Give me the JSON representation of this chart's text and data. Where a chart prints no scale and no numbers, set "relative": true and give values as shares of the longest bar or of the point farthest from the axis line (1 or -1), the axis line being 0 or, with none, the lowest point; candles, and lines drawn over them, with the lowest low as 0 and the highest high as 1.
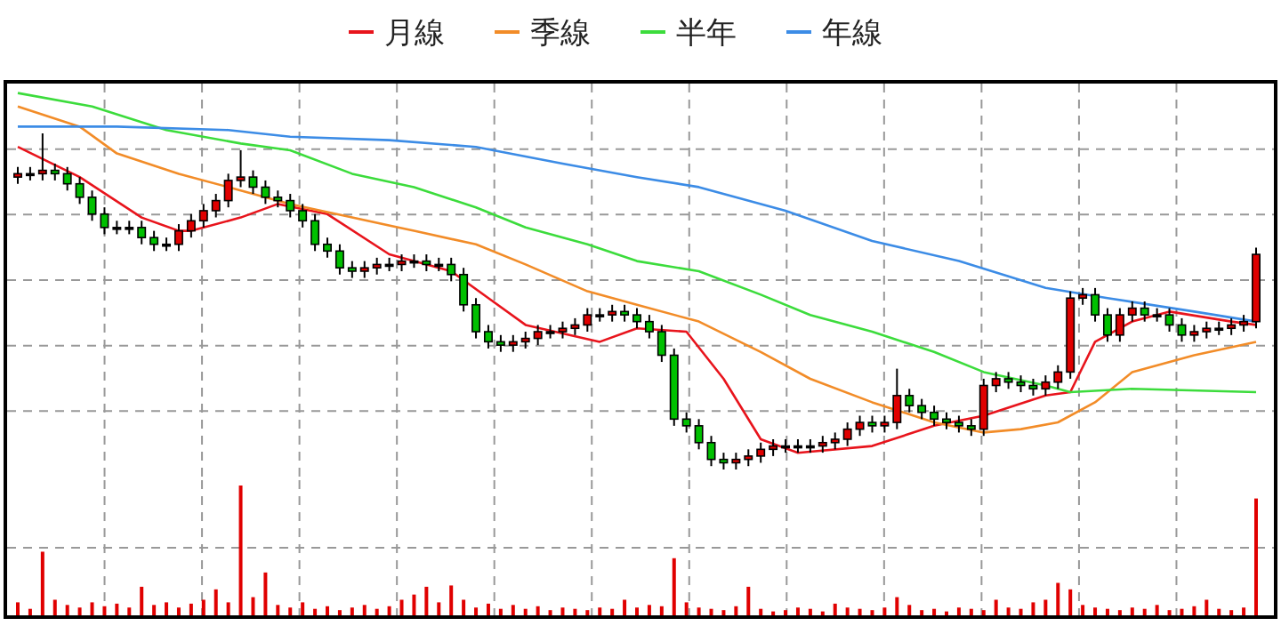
{
  "chart_data": [
    {
      "type": "candlestick",
      "relative": true,
      "grid": true,
      "legend": "top",
      "categories": [
        null,
        null,
        null,
        null,
        null,
        null,
        null,
        null,
        null,
        null,
        null,
        null,
        null,
        null,
        null,
        null,
        null,
        null,
        null,
        null,
        null,
        null,
        null,
        null,
        null,
        null,
        null,
        null,
        null,
        null,
        null,
        null,
        null,
        null,
        null,
        null,
        null,
        null,
        null,
        null,
        null,
        null,
        null,
        null,
        null,
        null,
        null,
        null,
        null,
        null,
        null,
        null,
        null,
        null,
        null,
        null,
        null,
        null,
        null,
        null,
        null,
        null,
        null,
        null,
        null,
        null,
        null,
        null,
        null,
        null,
        null,
        null,
        null,
        null,
        null,
        null,
        null,
        null,
        null,
        null,
        null,
        null,
        null,
        null,
        null,
        null,
        null,
        null,
        null,
        null,
        null,
        null,
        null,
        null,
        null,
        null,
        null,
        null,
        null,
        null,
        null
      ],
      "ohlc": [
        [
          0.87,
          0.9,
          0.85,
          0.88
        ],
        [
          0.88,
          0.9,
          0.86,
          0.88
        ],
        [
          0.88,
          1,
          0.86,
          0.89
        ],
        [
          0.89,
          0.91,
          0.86,
          0.88
        ],
        [
          0.88,
          0.9,
          0.83,
          0.85
        ],
        [
          0.85,
          0.87,
          0.79,
          0.81
        ],
        [
          0.81,
          0.83,
          0.74,
          0.76
        ],
        [
          0.76,
          0.78,
          0.7,
          0.72
        ],
        [
          0.72,
          0.74,
          0.7,
          0.72
        ],
        [
          0.72,
          0.74,
          0.7,
          0.72
        ],
        [
          0.72,
          0.74,
          0.67,
          0.69
        ],
        [
          0.69,
          0.71,
          0.65,
          0.67
        ],
        [
          0.67,
          0.69,
          0.65,
          0.67
        ],
        [
          0.67,
          0.73,
          0.65,
          0.71
        ],
        [
          0.71,
          0.76,
          0.69,
          0.74
        ],
        [
          0.74,
          0.79,
          0.72,
          0.77
        ],
        [
          0.77,
          0.82,
          0.75,
          0.8
        ],
        [
          0.8,
          0.88,
          0.78,
          0.86
        ],
        [
          0.86,
          0.95,
          0.84,
          0.87
        ],
        [
          0.87,
          0.89,
          0.82,
          0.84
        ],
        [
          0.84,
          0.86,
          0.79,
          0.81
        ],
        [
          0.81,
          0.83,
          0.78,
          0.8
        ],
        [
          0.8,
          0.82,
          0.75,
          0.77
        ],
        [
          0.77,
          0.79,
          0.72,
          0.74
        ],
        [
          0.74,
          0.76,
          0.65,
          0.67
        ],
        [
          0.67,
          0.69,
          0.63,
          0.65
        ],
        [
          0.65,
          0.67,
          0.58,
          0.6
        ],
        [
          0.6,
          0.62,
          0.57,
          0.59
        ],
        [
          0.59,
          0.62,
          0.57,
          0.6
        ],
        [
          0.6,
          0.63,
          0.58,
          0.61
        ],
        [
          0.61,
          0.63,
          0.59,
          0.61
        ],
        [
          0.61,
          0.64,
          0.59,
          0.62
        ],
        [
          0.62,
          0.64,
          0.6,
          0.62
        ],
        [
          0.62,
          0.64,
          0.59,
          0.61
        ],
        [
          0.61,
          0.63,
          0.59,
          0.61
        ],
        [
          0.61,
          0.63,
          0.56,
          0.58
        ],
        [
          0.58,
          0.6,
          0.47,
          0.49
        ],
        [
          0.49,
          0.51,
          0.39,
          0.41
        ],
        [
          0.41,
          0.43,
          0.36,
          0.38
        ],
        [
          0.38,
          0.4,
          0.35,
          0.37
        ],
        [
          0.37,
          0.4,
          0.35,
          0.38
        ],
        [
          0.38,
          0.41,
          0.36,
          0.39
        ],
        [
          0.39,
          0.43,
          0.37,
          0.41
        ],
        [
          0.41,
          0.43,
          0.39,
          0.41
        ],
        [
          0.41,
          0.44,
          0.39,
          0.42
        ],
        [
          0.42,
          0.45,
          0.4,
          0.43
        ],
        [
          0.43,
          0.48,
          0.41,
          0.46
        ],
        [
          0.46,
          0.48,
          0.44,
          0.46
        ],
        [
          0.46,
          0.49,
          0.44,
          0.47
        ],
        [
          0.47,
          0.49,
          0.44,
          0.46
        ],
        [
          0.46,
          0.48,
          0.42,
          0.44
        ],
        [
          0.44,
          0.46,
          0.39,
          0.41
        ],
        [
          0.41,
          0.43,
          0.32,
          0.34
        ],
        [
          0.34,
          0.36,
          0.13,
          0.15
        ],
        [
          0.15,
          0.17,
          0.11,
          0.13
        ],
        [
          0.13,
          0.15,
          0.06,
          0.08
        ],
        [
          0.08,
          0.1,
          0.01,
          0.03
        ],
        [
          0.03,
          0.05,
          0,
          0.02
        ],
        [
          0.02,
          0.05,
          0,
          0.03
        ],
        [
          0.03,
          0.06,
          0.01,
          0.04
        ],
        [
          0.04,
          0.08,
          0.02,
          0.06
        ],
        [
          0.06,
          0.09,
          0.04,
          0.07
        ],
        [
          0.07,
          0.09,
          0.05,
          0.07
        ],
        [
          0.07,
          0.09,
          0.05,
          0.07
        ],
        [
          0.07,
          0.09,
          0.05,
          0.07
        ],
        [
          0.07,
          0.1,
          0.05,
          0.08
        ],
        [
          0.08,
          0.11,
          0.06,
          0.09
        ],
        [
          0.09,
          0.14,
          0.07,
          0.12
        ],
        [
          0.12,
          0.16,
          0.1,
          0.14
        ],
        [
          0.14,
          0.16,
          0.11,
          0.13
        ],
        [
          0.13,
          0.16,
          0.11,
          0.14
        ],
        [
          0.14,
          0.3,
          0.12,
          0.22
        ],
        [
          0.22,
          0.24,
          0.17,
          0.19
        ],
        [
          0.19,
          0.21,
          0.15,
          0.17
        ],
        [
          0.17,
          0.19,
          0.13,
          0.15
        ],
        [
          0.15,
          0.17,
          0.12,
          0.14
        ],
        [
          0.14,
          0.16,
          0.11,
          0.13
        ],
        [
          0.13,
          0.15,
          0.1,
          0.12
        ],
        [
          0.12,
          0.27,
          0.1,
          0.25
        ],
        [
          0.25,
          0.29,
          0.23,
          0.27
        ],
        [
          0.27,
          0.29,
          0.24,
          0.26
        ],
        [
          0.26,
          0.28,
          0.23,
          0.25
        ],
        [
          0.25,
          0.27,
          0.22,
          0.24
        ],
        [
          0.24,
          0.28,
          0.22,
          0.26
        ],
        [
          0.26,
          0.31,
          0.24,
          0.29
        ],
        [
          0.29,
          0.53,
          0.27,
          0.51
        ],
        [
          0.51,
          0.54,
          0.49,
          0.52
        ],
        [
          0.52,
          0.54,
          0.44,
          0.46
        ],
        [
          0.46,
          0.48,
          0.38,
          0.4
        ],
        [
          0.4,
          0.48,
          0.38,
          0.46
        ],
        [
          0.46,
          0.5,
          0.44,
          0.48
        ],
        [
          0.48,
          0.5,
          0.44,
          0.46
        ],
        [
          0.46,
          0.48,
          0.44,
          0.46
        ],
        [
          0.46,
          0.48,
          0.41,
          0.43
        ],
        [
          0.43,
          0.45,
          0.38,
          0.4
        ],
        [
          0.4,
          0.43,
          0.38,
          0.41
        ],
        [
          0.41,
          0.44,
          0.39,
          0.42
        ],
        [
          0.42,
          0.44,
          0.4,
          0.42
        ],
        [
          0.42,
          0.45,
          0.4,
          0.43
        ],
        [
          0.43,
          0.46,
          0.41,
          0.44
        ],
        [
          0.44,
          0.66,
          0.42,
          0.64
        ]
      ],
      "series": [
        {
          "name": "月線",
          "type": "line",
          "color": "#e8141c",
          "values": [
            0.96,
            null,
            null,
            null,
            null,
            0.87,
            null,
            null,
            null,
            null,
            0.75,
            null,
            null,
            0.71,
            0.71,
            null,
            null,
            null,
            0.75,
            null,
            null,
            0.79,
            null,
            null,
            null,
            0.76,
            null,
            null,
            null,
            null,
            0.64,
            null,
            null,
            null,
            null,
            0.59,
            null,
            null,
            0.51,
            null,
            null,
            0.43,
            null,
            null,
            null,
            null,
            null,
            0.38,
            null,
            null,
            0.42,
            null,
            null,
            null,
            0.41,
            null,
            null,
            0.27,
            null,
            null,
            0.09,
            null,
            null,
            0.05,
            null,
            null,
            null,
            null,
            null,
            0.07,
            null,
            null,
            null,
            null,
            0.13,
            null,
            null,
            null,
            0.16,
            null,
            null,
            null,
            null,
            0.22,
            null,
            0.23,
            null,
            0.38,
            null,
            null,
            0.44,
            null,
            null,
            0.47,
            null,
            null,
            null,
            null,
            0.44,
            null,
            0.43
          ]
        },
        {
          "name": "季線",
          "type": "line",
          "color": "#f28c28",
          "values": [
            1.08,
            null,
            null,
            null,
            null,
            1.02,
            null,
            null,
            0.94,
            null,
            null,
            null,
            null,
            0.88,
            null,
            null,
            null,
            null,
            0.83,
            null,
            null,
            null,
            0.79,
            null,
            null,
            null,
            null,
            0.75,
            null,
            null,
            null,
            null,
            0.71,
            null,
            null,
            null,
            null,
            0.67,
            null,
            null,
            null,
            0.61,
            null,
            null,
            null,
            null,
            0.53,
            null,
            null,
            null,
            0.49,
            null,
            null,
            null,
            null,
            0.44,
            null,
            null,
            null,
            null,
            0.35,
            null,
            null,
            null,
            0.27,
            null,
            null,
            null,
            null,
            0.2,
            null,
            null,
            null,
            null,
            0.14,
            null,
            null,
            null,
            0.11,
            null,
            null,
            0.12,
            null,
            null,
            0.14,
            null,
            null,
            0.2,
            null,
            null,
            0.29,
            null,
            null,
            null,
            null,
            0.34,
            null,
            null,
            null,
            null,
            0.38
          ]
        },
        {
          "name": "半年",
          "type": "line",
          "color": "#3cdc3c",
          "values": [
            1.12,
            null,
            null,
            null,
            null,
            null,
            1.08,
            null,
            null,
            null,
            null,
            null,
            1.01,
            null,
            null,
            null,
            null,
            null,
            0.97,
            null,
            null,
            null,
            0.95,
            null,
            null,
            null,
            null,
            0.88,
            null,
            null,
            null,
            null,
            0.84,
            null,
            null,
            null,
            null,
            0.78,
            null,
            null,
            null,
            0.72,
            null,
            null,
            null,
            null,
            0.67,
            null,
            null,
            null,
            0.62,
            null,
            null,
            null,
            null,
            0.59,
            null,
            null,
            null,
            null,
            0.52,
            null,
            null,
            null,
            0.46,
            null,
            null,
            null,
            null,
            0.41,
            null,
            null,
            null,
            null,
            0.35,
            null,
            null,
            null,
            0.29,
            null,
            null,
            null,
            null,
            0.25,
            null,
            0.23,
            null,
            null,
            null,
            null,
            0.24,
            null,
            null,
            null,
            null,
            null,
            null,
            null,
            null,
            null,
            0.23
          ]
        },
        {
          "name": "年線",
          "type": "line",
          "color": "#3c8ce6",
          "values": [
            1.02,
            null,
            null,
            null,
            null,
            null,
            null,
            null,
            1.02,
            null,
            null,
            null,
            null,
            null,
            null,
            null,
            null,
            1.01,
            null,
            null,
            null,
            null,
            0.99,
            null,
            null,
            null,
            null,
            null,
            null,
            null,
            0.98,
            null,
            null,
            null,
            null,
            null,
            null,
            0.96,
            null,
            null,
            null,
            null,
            null,
            null,
            0.91,
            null,
            null,
            null,
            null,
            null,
            0.87,
            null,
            null,
            null,
            null,
            0.84,
            null,
            null,
            null,
            null,
            null,
            null,
            0.77,
            null,
            null,
            null,
            null,
            null,
            null,
            0.68,
            null,
            null,
            null,
            null,
            null,
            null,
            0.62,
            null,
            null,
            null,
            null,
            null,
            null,
            0.54,
            null,
            null,
            null,
            null,
            0.51,
            null,
            null,
            null,
            null,
            null,
            null,
            0.47,
            null,
            null,
            null,
            null,
            0.44
          ]
        }
      ]
    },
    {
      "type": "bar",
      "relative": true,
      "grid": true,
      "color": "#e00000",
      "categories": [
        null,
        null,
        null,
        null,
        null,
        null,
        null,
        null,
        null,
        null,
        null,
        null,
        null,
        null,
        null,
        null,
        null,
        null,
        null,
        null,
        null,
        null,
        null,
        null,
        null,
        null,
        null,
        null,
        null,
        null,
        null,
        null,
        null,
        null,
        null,
        null,
        null,
        null,
        null,
        null,
        null,
        null,
        null,
        null,
        null,
        null,
        null,
        null,
        null,
        null,
        null,
        null,
        null,
        null,
        null,
        null,
        null,
        null,
        null,
        null,
        null,
        null,
        null,
        null,
        null,
        null,
        null,
        null,
        null,
        null,
        null,
        null,
        null,
        null,
        null,
        null,
        null,
        null,
        null,
        null,
        null,
        null,
        null,
        null,
        null,
        null,
        null,
        null,
        null,
        null,
        null,
        null,
        null,
        null,
        null,
        null,
        null,
        null,
        null,
        null,
        null
      ],
      "values": [
        0.1,
        0.05,
        0.49,
        0.12,
        0.08,
        0.06,
        0.1,
        0.07,
        0.09,
        0.06,
        0.22,
        0.08,
        0.1,
        0.06,
        0.09,
        0.12,
        0.2,
        0.1,
        1,
        0.14,
        0.33,
        0.08,
        0.06,
        0.1,
        0.05,
        0.07,
        0.04,
        0.06,
        0.08,
        0.05,
        0.07,
        0.12,
        0.16,
        0.22,
        0.1,
        0.23,
        0.12,
        0.06,
        0.09,
        0.05,
        0.08,
        0.05,
        0.07,
        0.04,
        0.06,
        0.05,
        0.04,
        0.06,
        0.05,
        0.12,
        0.06,
        0.08,
        0.07,
        0.44,
        0.1,
        0.06,
        0.05,
        0.04,
        0.07,
        0.22,
        0.05,
        0.03,
        0.04,
        0.06,
        0.05,
        0.03,
        0.09,
        0.06,
        0.05,
        0.04,
        0.06,
        0.14,
        0.08,
        0.04,
        0.05,
        0.03,
        0.06,
        0.05,
        0.04,
        0.12,
        0.06,
        0.05,
        0.1,
        0.12,
        0.25,
        0.2,
        0.08,
        0.06,
        0.05,
        0.04,
        0.06,
        0.05,
        0.08,
        0.04,
        0.05,
        0.07,
        0.12,
        0.05,
        0.04,
        0.06,
        0.9
      ]
    }
  ]
}
